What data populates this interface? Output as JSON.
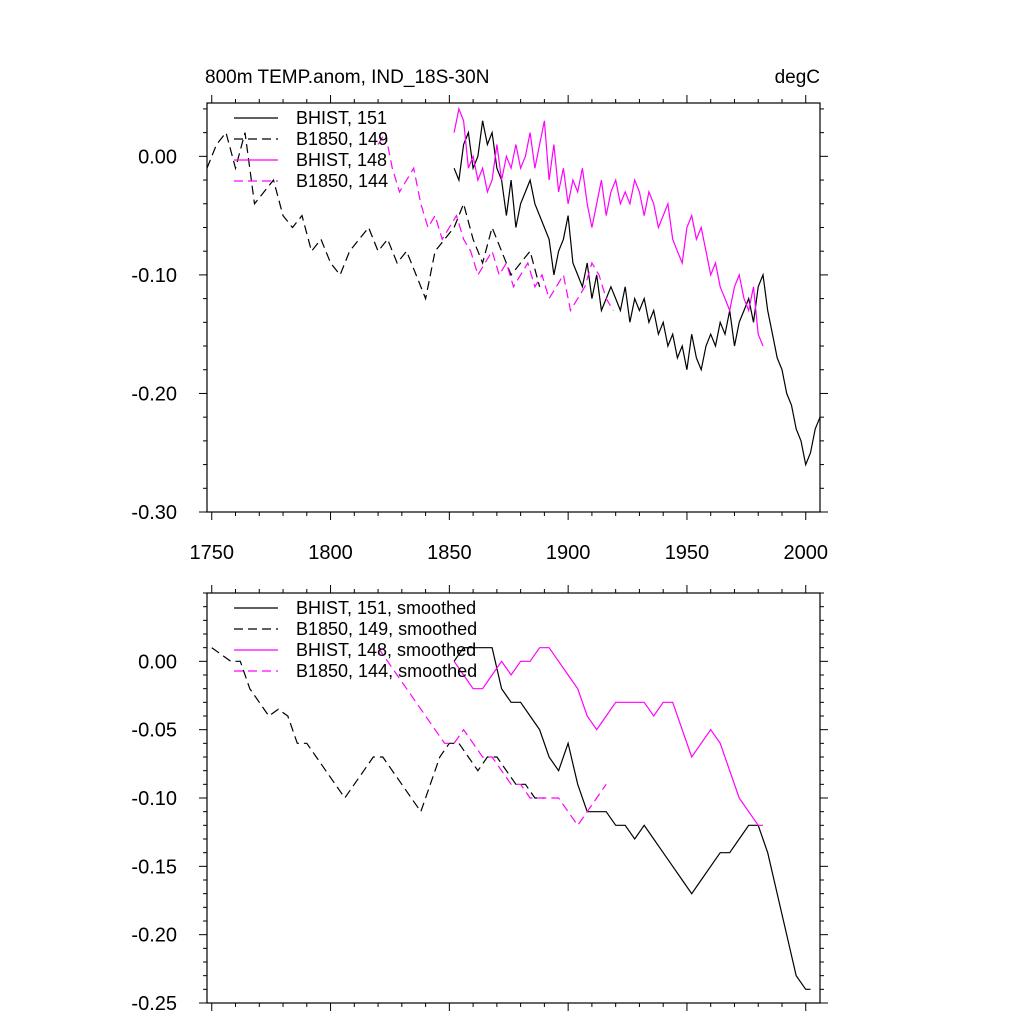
{
  "colors": {
    "black": "#000000",
    "magenta": "#ff00ff"
  },
  "chart_data": [
    {
      "type": "line",
      "title": "800m TEMP.anom, IND_18S-30N",
      "units": "degC",
      "xlim": [
        1748,
        2006
      ],
      "ylim": [
        -0.3,
        0.045
      ],
      "xticks": [
        1750,
        1800,
        1850,
        1900,
        1950,
        2000
      ],
      "yticks": [
        0.0,
        -0.1,
        -0.2,
        -0.3
      ],
      "ytick_labels": [
        "0.00",
        "-0.10",
        "-0.20",
        "-0.30"
      ],
      "grid": false,
      "legend_position": "top-left",
      "series": [
        {
          "name": "BHIST, 151",
          "color": "#000000",
          "dash": "solid",
          "x": [
            1852,
            1854,
            1856,
            1858,
            1860,
            1862,
            1864,
            1866,
            1868,
            1870,
            1872,
            1874,
            1876,
            1878,
            1880,
            1882,
            1884,
            1886,
            1888,
            1890,
            1892,
            1894,
            1896,
            1898,
            1900,
            1902,
            1904,
            1906,
            1908,
            1910,
            1912,
            1914,
            1916,
            1918,
            1920,
            1922,
            1924,
            1926,
            1928,
            1930,
            1932,
            1934,
            1936,
            1938,
            1940,
            1942,
            1944,
            1946,
            1948,
            1950,
            1952,
            1954,
            1956,
            1958,
            1960,
            1962,
            1964,
            1966,
            1968,
            1970,
            1972,
            1974,
            1976,
            1978,
            1980,
            1982,
            1984,
            1986,
            1988,
            1990,
            1992,
            1994,
            1996,
            1998,
            2000,
            2002,
            2004,
            2006
          ],
          "y": [
            -0.01,
            -0.02,
            0.01,
            0.02,
            -0.01,
            0.0,
            0.03,
            0.01,
            0.02,
            -0.01,
            -0.02,
            -0.05,
            -0.02,
            -0.06,
            -0.04,
            -0.03,
            -0.02,
            -0.04,
            -0.05,
            -0.06,
            -0.07,
            -0.1,
            -0.08,
            -0.07,
            -0.05,
            -0.09,
            -0.1,
            -0.11,
            -0.09,
            -0.12,
            -0.1,
            -0.13,
            -0.12,
            -0.11,
            -0.12,
            -0.13,
            -0.11,
            -0.14,
            -0.12,
            -0.13,
            -0.12,
            -0.14,
            -0.13,
            -0.15,
            -0.14,
            -0.16,
            -0.15,
            -0.17,
            -0.16,
            -0.18,
            -0.15,
            -0.17,
            -0.18,
            -0.16,
            -0.15,
            -0.16,
            -0.14,
            -0.15,
            -0.13,
            -0.16,
            -0.14,
            -0.13,
            -0.12,
            -0.14,
            -0.11,
            -0.1,
            -0.13,
            -0.15,
            -0.17,
            -0.18,
            -0.2,
            -0.21,
            -0.23,
            -0.24,
            -0.26,
            -0.25,
            -0.23,
            -0.22
          ]
        },
        {
          "name": "B1850, 149",
          "color": "#000000",
          "dash": "dashed",
          "x": [
            1748,
            1752,
            1756,
            1760,
            1764,
            1768,
            1772,
            1776,
            1780,
            1784,
            1788,
            1792,
            1796,
            1800,
            1804,
            1808,
            1812,
            1816,
            1820,
            1824,
            1828,
            1832,
            1836,
            1840,
            1844,
            1848,
            1852,
            1856,
            1860,
            1864,
            1868,
            1872,
            1876,
            1880,
            1884,
            1888
          ],
          "y": [
            -0.01,
            0.01,
            0.02,
            -0.01,
            0.02,
            -0.04,
            -0.03,
            -0.02,
            -0.05,
            -0.06,
            -0.05,
            -0.08,
            -0.07,
            -0.09,
            -0.1,
            -0.08,
            -0.07,
            -0.06,
            -0.08,
            -0.07,
            -0.09,
            -0.08,
            -0.1,
            -0.12,
            -0.08,
            -0.07,
            -0.06,
            -0.04,
            -0.07,
            -0.09,
            -0.06,
            -0.08,
            -0.1,
            -0.09,
            -0.08,
            -0.11
          ]
        },
        {
          "name": "BHIST, 148",
          "color": "#ff00ff",
          "dash": "solid",
          "x": [
            1852,
            1854,
            1856,
            1858,
            1860,
            1862,
            1864,
            1866,
            1868,
            1870,
            1872,
            1874,
            1876,
            1878,
            1880,
            1882,
            1884,
            1886,
            1888,
            1890,
            1892,
            1894,
            1896,
            1898,
            1900,
            1902,
            1904,
            1906,
            1908,
            1910,
            1912,
            1914,
            1916,
            1918,
            1920,
            1922,
            1924,
            1926,
            1928,
            1930,
            1932,
            1934,
            1936,
            1938,
            1940,
            1942,
            1944,
            1946,
            1948,
            1950,
            1952,
            1954,
            1956,
            1958,
            1960,
            1962,
            1964,
            1966,
            1968,
            1970,
            1972,
            1974,
            1976,
            1978,
            1980,
            1982
          ],
          "y": [
            0.02,
            0.04,
            0.03,
            -0.01,
            0.0,
            -0.02,
            -0.01,
            -0.03,
            -0.02,
            0.01,
            -0.02,
            0.0,
            -0.01,
            0.01,
            -0.01,
            0.0,
            0.02,
            -0.01,
            0.01,
            0.03,
            -0.02,
            0.01,
            -0.03,
            -0.01,
            -0.04,
            -0.02,
            -0.03,
            -0.01,
            -0.04,
            -0.06,
            -0.04,
            -0.02,
            -0.05,
            -0.03,
            -0.02,
            -0.04,
            -0.03,
            -0.04,
            -0.02,
            -0.03,
            -0.05,
            -0.03,
            -0.04,
            -0.06,
            -0.05,
            -0.04,
            -0.07,
            -0.08,
            -0.09,
            -0.06,
            -0.05,
            -0.07,
            -0.06,
            -0.08,
            -0.1,
            -0.09,
            -0.11,
            -0.12,
            -0.13,
            -0.11,
            -0.1,
            -0.12,
            -0.13,
            -0.11,
            -0.15,
            -0.16
          ]
        },
        {
          "name": "B1850, 144",
          "color": "#ff00ff",
          "dash": "dashed",
          "x": [
            1820,
            1823,
            1826,
            1829,
            1832,
            1835,
            1838,
            1841,
            1844,
            1847,
            1850,
            1853,
            1856,
            1859,
            1862,
            1865,
            1868,
            1871,
            1874,
            1877,
            1880,
            1883,
            1886,
            1889,
            1892,
            1895,
            1898,
            1901,
            1904,
            1907,
            1910,
            1913,
            1916,
            1919
          ],
          "y": [
            0.01,
            0.02,
            -0.01,
            -0.03,
            -0.02,
            -0.01,
            -0.04,
            -0.06,
            -0.05,
            -0.07,
            -0.06,
            -0.05,
            -0.07,
            -0.08,
            -0.1,
            -0.09,
            -0.08,
            -0.1,
            -0.09,
            -0.11,
            -0.1,
            -0.09,
            -0.11,
            -0.1,
            -0.12,
            -0.11,
            -0.1,
            -0.13,
            -0.12,
            -0.11,
            -0.09,
            -0.1,
            -0.12,
            -0.13
          ]
        }
      ]
    },
    {
      "type": "line",
      "title": "",
      "units": "",
      "xlim": [
        1748,
        2006
      ],
      "ylim": [
        -0.25,
        0.05
      ],
      "xticks": [
        1750,
        1800,
        1850,
        1900,
        1950,
        2000
      ],
      "yticks": [
        0.0,
        -0.05,
        -0.1,
        -0.15,
        -0.2,
        -0.25
      ],
      "ytick_labels": [
        "0.00",
        "-0.05",
        "-0.10",
        "-0.15",
        "-0.20",
        "-0.25"
      ],
      "grid": false,
      "legend_position": "top-left",
      "series": [
        {
          "name": "BHIST, 151, smoothed",
          "color": "#000000",
          "dash": "solid",
          "x": [
            1852,
            1856,
            1860,
            1864,
            1868,
            1872,
            1876,
            1880,
            1884,
            1888,
            1892,
            1896,
            1900,
            1904,
            1908,
            1912,
            1916,
            1920,
            1924,
            1928,
            1932,
            1936,
            1940,
            1944,
            1948,
            1952,
            1956,
            1960,
            1964,
            1968,
            1972,
            1976,
            1980,
            1984,
            1988,
            1992,
            1996,
            2000,
            2002
          ],
          "y": [
            0.0,
            0.01,
            0.01,
            0.01,
            0.01,
            -0.02,
            -0.03,
            -0.03,
            -0.04,
            -0.05,
            -0.07,
            -0.08,
            -0.06,
            -0.09,
            -0.11,
            -0.11,
            -0.11,
            -0.12,
            -0.12,
            -0.13,
            -0.12,
            -0.13,
            -0.14,
            -0.15,
            -0.16,
            -0.17,
            -0.16,
            -0.15,
            -0.14,
            -0.14,
            -0.13,
            -0.12,
            -0.12,
            -0.14,
            -0.17,
            -0.2,
            -0.23,
            -0.24,
            -0.24
          ]
        },
        {
          "name": "B1850, 149, smoothed",
          "color": "#000000",
          "dash": "dashed",
          "x": [
            1750,
            1754,
            1758,
            1762,
            1766,
            1770,
            1774,
            1778,
            1782,
            1786,
            1790,
            1794,
            1798,
            1802,
            1806,
            1810,
            1814,
            1818,
            1822,
            1826,
            1830,
            1834,
            1838,
            1842,
            1846,
            1850,
            1854,
            1858,
            1862,
            1866,
            1870,
            1874,
            1878,
            1882,
            1886,
            1890
          ],
          "y": [
            0.01,
            0.005,
            0.0,
            0.0,
            -0.02,
            -0.03,
            -0.04,
            -0.035,
            -0.04,
            -0.06,
            -0.06,
            -0.07,
            -0.08,
            -0.09,
            -0.1,
            -0.09,
            -0.08,
            -0.07,
            -0.07,
            -0.08,
            -0.09,
            -0.1,
            -0.11,
            -0.09,
            -0.07,
            -0.06,
            -0.06,
            -0.07,
            -0.08,
            -0.07,
            -0.07,
            -0.08,
            -0.09,
            -0.09,
            -0.1,
            -0.1
          ]
        },
        {
          "name": "BHIST, 148, smoothed",
          "color": "#ff00ff",
          "dash": "solid",
          "x": [
            1852,
            1856,
            1860,
            1864,
            1868,
            1872,
            1876,
            1880,
            1884,
            1888,
            1892,
            1896,
            1900,
            1904,
            1908,
            1912,
            1916,
            1920,
            1924,
            1928,
            1932,
            1936,
            1940,
            1944,
            1948,
            1952,
            1956,
            1960,
            1964,
            1968,
            1972,
            1976,
            1980,
            1982
          ],
          "y": [
            0.0,
            -0.01,
            -0.02,
            -0.02,
            -0.01,
            0.0,
            -0.01,
            0.0,
            0.0,
            0.01,
            0.01,
            0.0,
            -0.01,
            -0.02,
            -0.04,
            -0.05,
            -0.04,
            -0.03,
            -0.03,
            -0.03,
            -0.03,
            -0.04,
            -0.03,
            -0.03,
            -0.05,
            -0.07,
            -0.06,
            -0.05,
            -0.06,
            -0.08,
            -0.1,
            -0.11,
            -0.12,
            -0.12
          ]
        },
        {
          "name": "B1850, 144, smoothed",
          "color": "#ff00ff",
          "dash": "dashed",
          "x": [
            1820,
            1824,
            1828,
            1832,
            1836,
            1840,
            1844,
            1848,
            1852,
            1856,
            1860,
            1864,
            1868,
            1872,
            1876,
            1880,
            1884,
            1888,
            1892,
            1896,
            1900,
            1904,
            1908,
            1912,
            1916
          ],
          "y": [
            0.01,
            0.0,
            -0.01,
            -0.02,
            -0.03,
            -0.04,
            -0.05,
            -0.06,
            -0.06,
            -0.05,
            -0.06,
            -0.07,
            -0.07,
            -0.08,
            -0.09,
            -0.09,
            -0.1,
            -0.1,
            -0.1,
            -0.1,
            -0.11,
            -0.12,
            -0.11,
            -0.1,
            -0.09
          ]
        }
      ]
    }
  ]
}
